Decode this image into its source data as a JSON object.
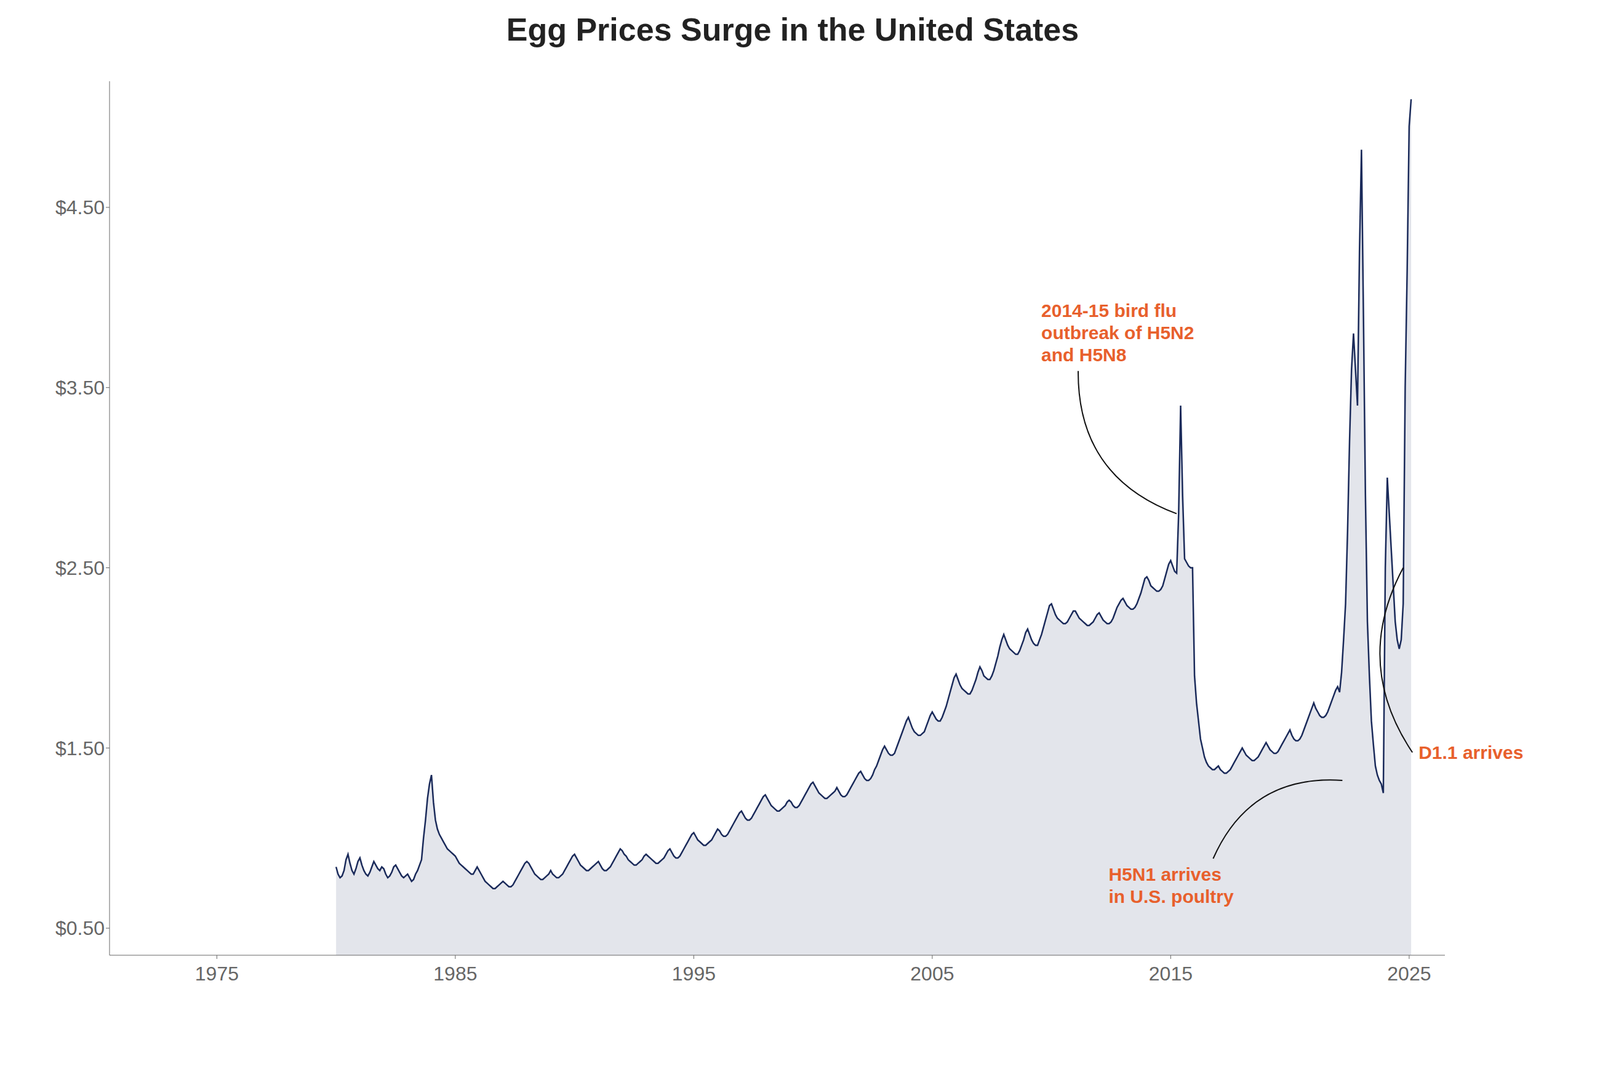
{
  "chart_data": {
    "type": "area",
    "title": "Egg Prices Surge in the United States",
    "color": "#1a2a5a",
    "grid": false,
    "xlim": [
      1970.5,
      2026.5
    ],
    "xticks": [
      1975,
      1985,
      1995,
      2005,
      2015,
      2025
    ],
    "ylim": [
      0.35,
      5.2
    ],
    "yticks": [
      {
        "value": 0.5,
        "label": "$0.50"
      },
      {
        "value": 1.5,
        "label": "$1.50"
      },
      {
        "value": 2.5,
        "label": "$2.50"
      },
      {
        "value": 3.5,
        "label": "$3.50"
      },
      {
        "value": 4.5,
        "label": "$4.50"
      }
    ],
    "x": [
      1980,
      1980.0833333333333,
      1980.1666666666667,
      1980.25,
      1980.3333333333333,
      1980.4166666666667,
      1980.5,
      1980.5833333333333,
      1980.6666666666667,
      1980.75,
      1980.8333333333333,
      1980.9166666666667,
      1981,
      1981.0833333333333,
      1981.1666666666667,
      1981.25,
      1981.3333333333333,
      1981.4166666666667,
      1981.5,
      1981.5833333333333,
      1981.6666666666667,
      1981.75,
      1981.8333333333333,
      1981.9166666666667,
      1982,
      1982.0833333333333,
      1982.1666666666667,
      1982.25,
      1982.3333333333333,
      1982.4166666666667,
      1982.5,
      1982.5833333333333,
      1982.6666666666667,
      1982.75,
      1982.8333333333333,
      1982.9166666666667,
      1983,
      1983.0833333333333,
      1983.1666666666667,
      1983.25,
      1983.3333333333333,
      1983.4166666666667,
      1983.5,
      1983.5833333333333,
      1983.6666666666667,
      1983.75,
      1983.8333333333333,
      1983.9166666666667,
      1984,
      1984.0833333333333,
      1984.1666666666667,
      1984.25,
      1984.3333333333333,
      1984.4166666666667,
      1984.5,
      1984.5833333333333,
      1984.6666666666667,
      1984.75,
      1984.8333333333333,
      1984.9166666666667,
      1985,
      1985.0833333333333,
      1985.1666666666667,
      1985.25,
      1985.3333333333333,
      1985.4166666666667,
      1985.5,
      1985.5833333333333,
      1985.6666666666667,
      1985.75,
      1985.8333333333333,
      1985.9166666666667,
      1986,
      1986.0833333333333,
      1986.1666666666667,
      1986.25,
      1986.3333333333333,
      1986.4166666666667,
      1986.5,
      1986.5833333333333,
      1986.6666666666667,
      1986.75,
      1986.8333333333333,
      1986.9166666666667,
      1987,
      1987.0833333333333,
      1987.1666666666667,
      1987.25,
      1987.3333333333333,
      1987.4166666666667,
      1987.5,
      1987.5833333333333,
      1987.6666666666667,
      1987.75,
      1987.8333333333333,
      1987.9166666666667,
      1988,
      1988.0833333333333,
      1988.1666666666667,
      1988.25,
      1988.3333333333333,
      1988.4166666666667,
      1988.5,
      1988.5833333333333,
      1988.6666666666667,
      1988.75,
      1988.8333333333333,
      1988.9166666666667,
      1989,
      1989.0833333333333,
      1989.1666666666667,
      1989.25,
      1989.3333333333333,
      1989.4166666666667,
      1989.5,
      1989.5833333333333,
      1989.6666666666667,
      1989.75,
      1989.8333333333333,
      1989.9166666666667,
      1990,
      1990.0833333333333,
      1990.1666666666667,
      1990.25,
      1990.3333333333333,
      1990.4166666666667,
      1990.5,
      1990.5833333333333,
      1990.6666666666667,
      1990.75,
      1990.8333333333333,
      1990.9166666666667,
      1991,
      1991.0833333333333,
      1991.1666666666667,
      1991.25,
      1991.3333333333333,
      1991.4166666666667,
      1991.5,
      1991.5833333333333,
      1991.6666666666667,
      1991.75,
      1991.8333333333333,
      1991.9166666666667,
      1992,
      1992.0833333333333,
      1992.1666666666667,
      1992.25,
      1992.3333333333333,
      1992.4166666666667,
      1992.5,
      1992.5833333333333,
      1992.6666666666667,
      1992.75,
      1992.8333333333333,
      1992.9166666666667,
      1993,
      1993.0833333333333,
      1993.1666666666667,
      1993.25,
      1993.3333333333333,
      1993.4166666666667,
      1993.5,
      1993.5833333333333,
      1993.6666666666667,
      1993.75,
      1993.8333333333333,
      1993.9166666666667,
      1994,
      1994.0833333333333,
      1994.1666666666667,
      1994.25,
      1994.3333333333333,
      1994.4166666666667,
      1994.5,
      1994.5833333333333,
      1994.6666666666667,
      1994.75,
      1994.8333333333333,
      1994.9166666666667,
      1995,
      1995.0833333333333,
      1995.1666666666667,
      1995.25,
      1995.3333333333333,
      1995.4166666666667,
      1995.5,
      1995.5833333333333,
      1995.6666666666667,
      1995.75,
      1995.8333333333333,
      1995.9166666666667,
      1996,
      1996.0833333333333,
      1996.1666666666667,
      1996.25,
      1996.3333333333333,
      1996.4166666666667,
      1996.5,
      1996.5833333333333,
      1996.6666666666667,
      1996.75,
      1996.8333333333333,
      1996.9166666666667,
      1997,
      1997.0833333333333,
      1997.1666666666667,
      1997.25,
      1997.3333333333333,
      1997.4166666666667,
      1997.5,
      1997.5833333333333,
      1997.6666666666667,
      1997.75,
      1997.8333333333333,
      1997.9166666666667,
      1998,
      1998.0833333333333,
      1998.1666666666667,
      1998.25,
      1998.3333333333333,
      1998.4166666666667,
      1998.5,
      1998.5833333333333,
      1998.6666666666667,
      1998.75,
      1998.8333333333333,
      1998.9166666666667,
      1999,
      1999.0833333333333,
      1999.1666666666667,
      1999.25,
      1999.3333333333333,
      1999.4166666666667,
      1999.5,
      1999.5833333333333,
      1999.6666666666667,
      1999.75,
      1999.8333333333333,
      1999.9166666666667,
      2000,
      2000.0833333333333,
      2000.1666666666667,
      2000.25,
      2000.3333333333333,
      2000.4166666666667,
      2000.5,
      2000.5833333333333,
      2000.6666666666667,
      2000.75,
      2000.8333333333333,
      2000.9166666666667,
      2001,
      2001.0833333333333,
      2001.1666666666667,
      2001.25,
      2001.3333333333333,
      2001.4166666666667,
      2001.5,
      2001.5833333333333,
      2001.6666666666667,
      2001.75,
      2001.8333333333333,
      2001.9166666666667,
      2002,
      2002.0833333333333,
      2002.1666666666667,
      2002.25,
      2002.3333333333333,
      2002.4166666666667,
      2002.5,
      2002.5833333333333,
      2002.6666666666667,
      2002.75,
      2002.8333333333333,
      2002.9166666666667,
      2003,
      2003.0833333333333,
      2003.1666666666667,
      2003.25,
      2003.3333333333333,
      2003.4166666666667,
      2003.5,
      2003.5833333333333,
      2003.6666666666667,
      2003.75,
      2003.8333333333333,
      2003.9166666666667,
      2004,
      2004.0833333333333,
      2004.1666666666667,
      2004.25,
      2004.3333333333333,
      2004.4166666666667,
      2004.5,
      2004.5833333333333,
      2004.6666666666667,
      2004.75,
      2004.8333333333333,
      2004.9166666666667,
      2005,
      2005.0833333333333,
      2005.1666666666667,
      2005.25,
      2005.3333333333333,
      2005.4166666666667,
      2005.5,
      2005.5833333333333,
      2005.6666666666667,
      2005.75,
      2005.8333333333333,
      2005.9166666666667,
      2006,
      2006.0833333333333,
      2006.1666666666667,
      2006.25,
      2006.3333333333333,
      2006.4166666666667,
      2006.5,
      2006.5833333333333,
      2006.6666666666667,
      2006.75,
      2006.8333333333333,
      2006.9166666666667,
      2007,
      2007.0833333333333,
      2007.1666666666667,
      2007.25,
      2007.3333333333333,
      2007.4166666666667,
      2007.5,
      2007.5833333333333,
      2007.6666666666667,
      2007.75,
      2007.8333333333333,
      2007.9166666666667,
      2008,
      2008.0833333333333,
      2008.1666666666667,
      2008.25,
      2008.3333333333333,
      2008.4166666666667,
      2008.5,
      2008.5833333333333,
      2008.6666666666667,
      2008.75,
      2008.8333333333333,
      2008.9166666666667,
      2009,
      2009.0833333333333,
      2009.1666666666667,
      2009.25,
      2009.3333333333333,
      2009.4166666666667,
      2009.5,
      2009.5833333333333,
      2009.6666666666667,
      2009.75,
      2009.8333333333333,
      2009.9166666666667,
      2010,
      2010.0833333333333,
      2010.1666666666667,
      2010.25,
      2010.3333333333333,
      2010.4166666666667,
      2010.5,
      2010.5833333333333,
      2010.6666666666667,
      2010.75,
      2010.8333333333333,
      2010.9166666666667,
      2011,
      2011.0833333333333,
      2011.1666666666667,
      2011.25,
      2011.3333333333333,
      2011.4166666666667,
      2011.5,
      2011.5833333333333,
      2011.6666666666667,
      2011.75,
      2011.8333333333333,
      2011.9166666666667,
      2012,
      2012.0833333333333,
      2012.1666666666667,
      2012.25,
      2012.3333333333333,
      2012.4166666666667,
      2012.5,
      2012.5833333333333,
      2012.6666666666667,
      2012.75,
      2012.8333333333333,
      2012.9166666666667,
      2013,
      2013.0833333333333,
      2013.1666666666667,
      2013.25,
      2013.3333333333333,
      2013.4166666666667,
      2013.5,
      2013.5833333333333,
      2013.6666666666667,
      2013.75,
      2013.8333333333333,
      2013.9166666666667,
      2014,
      2014.0833333333333,
      2014.1666666666667,
      2014.25,
      2014.3333333333333,
      2014.4166666666667,
      2014.5,
      2014.5833333333333,
      2014.6666666666667,
      2014.75,
      2014.8333333333333,
      2014.9166666666667,
      2015,
      2015.0833333333333,
      2015.1666666666667,
      2015.25,
      2015.3333333333333,
      2015.4166666666667,
      2015.5,
      2015.5833333333333,
      2015.6666666666667,
      2015.75,
      2015.8333333333333,
      2015.9166666666667,
      2016,
      2016.0833333333333,
      2016.1666666666667,
      2016.25,
      2016.3333333333333,
      2016.4166666666667,
      2016.5,
      2016.5833333333333,
      2016.6666666666667,
      2016.75,
      2016.8333333333333,
      2016.9166666666667,
      2017,
      2017.0833333333333,
      2017.1666666666667,
      2017.25,
      2017.3333333333333,
      2017.4166666666667,
      2017.5,
      2017.5833333333333,
      2017.6666666666667,
      2017.75,
      2017.8333333333333,
      2017.9166666666667,
      2018,
      2018.0833333333333,
      2018.1666666666667,
      2018.25,
      2018.3333333333333,
      2018.4166666666667,
      2018.5,
      2018.5833333333333,
      2018.6666666666667,
      2018.75,
      2018.8333333333333,
      2018.9166666666667,
      2019,
      2019.0833333333333,
      2019.1666666666667,
      2019.25,
      2019.3333333333333,
      2019.4166666666667,
      2019.5,
      2019.5833333333333,
      2019.6666666666667,
      2019.75,
      2019.8333333333333,
      2019.9166666666667,
      2020,
      2020.0833333333333,
      2020.1666666666667,
      2020.25,
      2020.3333333333333,
      2020.4166666666667,
      2020.5,
      2020.5833333333333,
      2020.6666666666667,
      2020.75,
      2020.8333333333333,
      2020.9166666666667,
      2021,
      2021.0833333333333,
      2021.1666666666667,
      2021.25,
      2021.3333333333333,
      2021.4166666666667,
      2021.5,
      2021.5833333333333,
      2021.6666666666667,
      2021.75,
      2021.8333333333333,
      2021.9166666666667,
      2022,
      2022.0833333333333,
      2022.1666666666667,
      2022.25,
      2022.3333333333333,
      2022.4166666666667,
      2022.5,
      2022.5833333333333,
      2022.6666666666667,
      2022.75,
      2022.8333333333333,
      2022.9166666666667,
      2023,
      2023.0833333333333,
      2023.1666666666667,
      2023.25,
      2023.3333333333333,
      2023.4166666666667,
      2023.5,
      2023.5833333333333,
      2023.6666666666667,
      2023.75,
      2023.8333333333333,
      2023.9166666666667,
      2024,
      2024.0833333333333,
      2024.1666666666667,
      2024.25,
      2024.3333333333333,
      2024.4166666666667,
      2024.5,
      2024.5833333333333,
      2024.6666666666667,
      2024.75,
      2024.8333333333333,
      2024.9166666666667,
      2025,
      2025.0833333333333
    ],
    "values": [
      0.84,
      0.8,
      0.78,
      0.79,
      0.82,
      0.88,
      0.91,
      0.86,
      0.82,
      0.8,
      0.83,
      0.87,
      0.89,
      0.85,
      0.82,
      0.8,
      0.79,
      0.81,
      0.84,
      0.87,
      0.85,
      0.83,
      0.82,
      0.84,
      0.83,
      0.8,
      0.78,
      0.79,
      0.81,
      0.84,
      0.85,
      0.83,
      0.81,
      0.79,
      0.78,
      0.79,
      0.8,
      0.78,
      0.76,
      0.77,
      0.8,
      0.82,
      0.85,
      0.88,
      1.0,
      1.1,
      1.22,
      1.3,
      1.35,
      1.2,
      1.1,
      1.05,
      1.02,
      1.0,
      0.98,
      0.96,
      0.94,
      0.93,
      0.92,
      0.91,
      0.9,
      0.88,
      0.86,
      0.85,
      0.84,
      0.83,
      0.82,
      0.81,
      0.8,
      0.8,
      0.82,
      0.84,
      0.82,
      0.8,
      0.78,
      0.76,
      0.75,
      0.74,
      0.73,
      0.72,
      0.72,
      0.73,
      0.74,
      0.75,
      0.76,
      0.75,
      0.74,
      0.73,
      0.73,
      0.74,
      0.76,
      0.78,
      0.8,
      0.82,
      0.84,
      0.86,
      0.87,
      0.86,
      0.84,
      0.82,
      0.8,
      0.79,
      0.78,
      0.77,
      0.77,
      0.78,
      0.79,
      0.8,
      0.82,
      0.8,
      0.79,
      0.78,
      0.78,
      0.79,
      0.8,
      0.82,
      0.84,
      0.86,
      0.88,
      0.9,
      0.91,
      0.89,
      0.87,
      0.85,
      0.84,
      0.83,
      0.82,
      0.82,
      0.83,
      0.84,
      0.85,
      0.86,
      0.87,
      0.85,
      0.83,
      0.82,
      0.82,
      0.83,
      0.84,
      0.86,
      0.88,
      0.9,
      0.92,
      0.94,
      0.93,
      0.91,
      0.9,
      0.88,
      0.87,
      0.86,
      0.85,
      0.85,
      0.86,
      0.87,
      0.88,
      0.9,
      0.91,
      0.9,
      0.89,
      0.88,
      0.87,
      0.86,
      0.86,
      0.87,
      0.88,
      0.89,
      0.91,
      0.93,
      0.94,
      0.92,
      0.9,
      0.89,
      0.89,
      0.9,
      0.92,
      0.94,
      0.96,
      0.98,
      1.0,
      1.02,
      1.03,
      1.01,
      0.99,
      0.98,
      0.97,
      0.96,
      0.96,
      0.97,
      0.98,
      0.99,
      1.01,
      1.03,
      1.05,
      1.04,
      1.02,
      1.01,
      1.01,
      1.02,
      1.04,
      1.06,
      1.08,
      1.1,
      1.12,
      1.14,
      1.15,
      1.13,
      1.11,
      1.1,
      1.1,
      1.11,
      1.13,
      1.15,
      1.17,
      1.19,
      1.21,
      1.23,
      1.24,
      1.22,
      1.2,
      1.18,
      1.17,
      1.16,
      1.15,
      1.15,
      1.16,
      1.17,
      1.18,
      1.2,
      1.21,
      1.2,
      1.18,
      1.17,
      1.17,
      1.18,
      1.2,
      1.22,
      1.24,
      1.26,
      1.28,
      1.3,
      1.31,
      1.29,
      1.27,
      1.25,
      1.24,
      1.23,
      1.22,
      1.22,
      1.23,
      1.24,
      1.25,
      1.26,
      1.28,
      1.26,
      1.24,
      1.23,
      1.23,
      1.24,
      1.26,
      1.28,
      1.3,
      1.32,
      1.34,
      1.36,
      1.37,
      1.35,
      1.33,
      1.32,
      1.32,
      1.33,
      1.35,
      1.38,
      1.4,
      1.43,
      1.46,
      1.49,
      1.51,
      1.49,
      1.47,
      1.46,
      1.46,
      1.47,
      1.5,
      1.53,
      1.56,
      1.59,
      1.62,
      1.65,
      1.67,
      1.64,
      1.61,
      1.59,
      1.58,
      1.57,
      1.57,
      1.58,
      1.59,
      1.62,
      1.65,
      1.68,
      1.7,
      1.68,
      1.66,
      1.65,
      1.65,
      1.67,
      1.7,
      1.73,
      1.77,
      1.81,
      1.85,
      1.89,
      1.91,
      1.88,
      1.85,
      1.83,
      1.82,
      1.81,
      1.8,
      1.8,
      1.82,
      1.85,
      1.88,
      1.92,
      1.95,
      1.93,
      1.9,
      1.89,
      1.88,
      1.88,
      1.9,
      1.93,
      1.97,
      2.01,
      2.06,
      2.1,
      2.13,
      2.1,
      2.07,
      2.05,
      2.04,
      2.03,
      2.02,
      2.02,
      2.04,
      2.07,
      2.1,
      2.14,
      2.16,
      2.13,
      2.1,
      2.08,
      2.07,
      2.07,
      2.1,
      2.13,
      2.17,
      2.21,
      2.25,
      2.29,
      2.3,
      2.27,
      2.24,
      2.22,
      2.21,
      2.2,
      2.19,
      2.19,
      2.2,
      2.22,
      2.24,
      2.26,
      2.26,
      2.24,
      2.22,
      2.21,
      2.2,
      2.19,
      2.18,
      2.18,
      2.19,
      2.2,
      2.22,
      2.24,
      2.25,
      2.23,
      2.21,
      2.2,
      2.19,
      2.19,
      2.2,
      2.22,
      2.25,
      2.28,
      2.3,
      2.32,
      2.33,
      2.31,
      2.29,
      2.28,
      2.27,
      2.27,
      2.28,
      2.3,
      2.33,
      2.36,
      2.4,
      2.44,
      2.45,
      2.43,
      2.4,
      2.39,
      2.38,
      2.37,
      2.37,
      2.38,
      2.4,
      2.44,
      2.48,
      2.52,
      2.54,
      2.51,
      2.48,
      2.47,
      2.8,
      3.4,
      2.9,
      2.55,
      2.53,
      2.51,
      2.5,
      2.5,
      1.9,
      1.75,
      1.65,
      1.55,
      1.5,
      1.45,
      1.42,
      1.4,
      1.39,
      1.38,
      1.38,
      1.39,
      1.4,
      1.38,
      1.37,
      1.36,
      1.36,
      1.37,
      1.38,
      1.4,
      1.42,
      1.44,
      1.46,
      1.48,
      1.5,
      1.48,
      1.46,
      1.45,
      1.44,
      1.43,
      1.43,
      1.44,
      1.45,
      1.47,
      1.49,
      1.51,
      1.53,
      1.51,
      1.49,
      1.48,
      1.47,
      1.47,
      1.48,
      1.5,
      1.52,
      1.54,
      1.56,
      1.58,
      1.6,
      1.57,
      1.55,
      1.54,
      1.54,
      1.55,
      1.57,
      1.6,
      1.63,
      1.66,
      1.69,
      1.72,
      1.75,
      1.72,
      1.7,
      1.68,
      1.67,
      1.67,
      1.68,
      1.7,
      1.73,
      1.76,
      1.79,
      1.82,
      1.84,
      1.81,
      1.92,
      2.1,
      2.3,
      2.7,
      3.2,
      3.6,
      3.8,
      3.6,
      3.4,
      4.25,
      4.82,
      3.9,
      2.9,
      2.2,
      1.9,
      1.65,
      1.52,
      1.4,
      1.35,
      1.32,
      1.3,
      1.25,
      2.5,
      3.0,
      2.8,
      2.6,
      2.4,
      2.2,
      2.1,
      2.05,
      2.1,
      2.3,
      3.5,
      4.15,
      4.95,
      5.1
    ],
    "annotations": [
      {
        "text": "2014-15 bird flu\noutbreak of H5N2\nand H5N8",
        "x": 2015.25,
        "y": 2.8,
        "color": "#e8602c"
      },
      {
        "text": "H5N1 arrives\nin U.S. poultry",
        "x": 2022.2,
        "y": 1.32,
        "color": "#e8602c"
      },
      {
        "text": "D1.1 arrives",
        "x": 2024.75,
        "y": 2.5,
        "color": "#e8602c"
      }
    ]
  }
}
